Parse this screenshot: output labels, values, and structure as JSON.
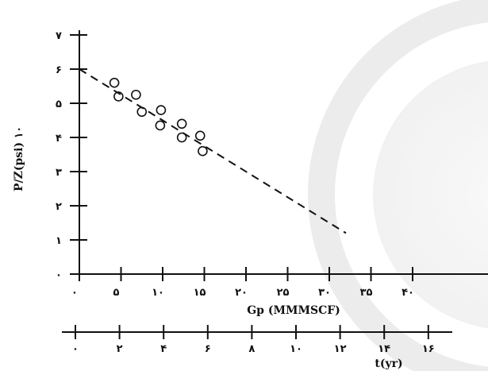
{
  "chart_data": {
    "type": "scatter",
    "title": "",
    "ylabel": "P/Z(psi) ۱۰",
    "xlabel": "Gp (MMMSCF)",
    "x2label": "t(yr)",
    "xlim": [
      0,
      45
    ],
    "ylim": [
      0,
      7
    ],
    "x2lim": [
      0,
      18
    ],
    "y_ticks": [
      {
        "value": 0,
        "label": "۰"
      },
      {
        "value": 1,
        "label": "۱"
      },
      {
        "value": 2,
        "label": "۲"
      },
      {
        "value": 3,
        "label": "۳"
      },
      {
        "value": 4,
        "label": "۴"
      },
      {
        "value": 5,
        "label": "۵"
      },
      {
        "value": 6,
        "label": "۶"
      },
      {
        "value": 7,
        "label": "۷"
      }
    ],
    "x_ticks": [
      {
        "value": 0,
        "label": "۰"
      },
      {
        "value": 5,
        "label": "۵"
      },
      {
        "value": 10,
        "label": "۱۰"
      },
      {
        "value": 15,
        "label": "۱۵"
      },
      {
        "value": 20,
        "label": "۲۰"
      },
      {
        "value": 25,
        "label": "۲۵"
      },
      {
        "value": 30,
        "label": "۳۰"
      },
      {
        "value": 35,
        "label": "۳۵"
      },
      {
        "value": 40,
        "label": "۴۰"
      }
    ],
    "x2_ticks": [
      {
        "value": 0,
        "label": "۰"
      },
      {
        "value": 2,
        "label": "۲"
      },
      {
        "value": 4,
        "label": "۴"
      },
      {
        "value": 6,
        "label": "۶"
      },
      {
        "value": 8,
        "label": "۸"
      },
      {
        "value": 10,
        "label": "۱۰"
      },
      {
        "value": 12,
        "label": "۱۲"
      },
      {
        "value": 14,
        "label": "۱۴"
      },
      {
        "value": 16,
        "label": "۱۶"
      }
    ],
    "points": [
      {
        "x": 4.2,
        "y": 5.6
      },
      {
        "x": 4.7,
        "y": 5.2
      },
      {
        "x": 6.8,
        "y": 5.25
      },
      {
        "x": 7.5,
        "y": 4.75
      },
      {
        "x": 9.8,
        "y": 4.8
      },
      {
        "x": 9.7,
        "y": 4.35
      },
      {
        "x": 12.3,
        "y": 4.4
      },
      {
        "x": 12.3,
        "y": 4.0
      },
      {
        "x": 14.5,
        "y": 4.05
      },
      {
        "x": 14.8,
        "y": 3.6
      }
    ],
    "trend_line": {
      "style": "dashed",
      "x": [
        0,
        32
      ],
      "y": [
        6.0,
        1.2
      ]
    }
  }
}
